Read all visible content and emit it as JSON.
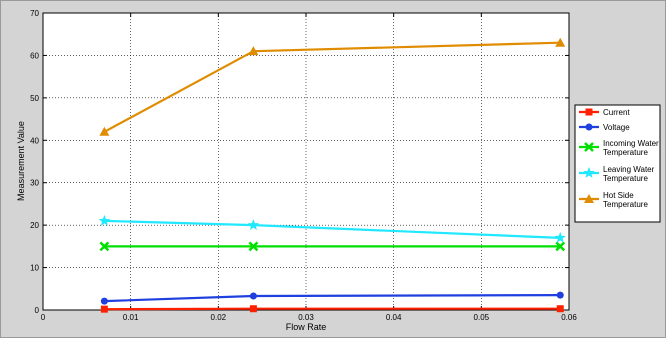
{
  "chart_data": {
    "type": "line",
    "title": "",
    "xlabel": "Flow Rate",
    "ylabel": "Measurement Value",
    "xlim": [
      0,
      0.06
    ],
    "ylim": [
      0,
      70
    ],
    "xticks": [
      0,
      0.01,
      0.02,
      0.03,
      0.04,
      0.05,
      0.06
    ],
    "xtick_labels": [
      "0",
      "0.01",
      "0.02",
      "0.03",
      "0.04",
      "0.05",
      "0.06"
    ],
    "yticks": [
      0,
      10,
      20,
      30,
      40,
      50,
      60,
      70
    ],
    "ytick_labels": [
      "0",
      "10",
      "20",
      "30",
      "40",
      "50",
      "60",
      "70"
    ],
    "grid": true,
    "legend_position": "right",
    "x": [
      0.007,
      0.024,
      0.059
    ],
    "series": [
      {
        "name": "Current",
        "values": [
          0.2,
          0.3,
          0.3
        ],
        "color": "#ff2000",
        "marker": "square"
      },
      {
        "name": "Voltage",
        "values": [
          2.1,
          3.3,
          3.5
        ],
        "color": "#1f3fdf",
        "marker": "circle"
      },
      {
        "name": "Incoming Water Temperature",
        "values": [
          15,
          15,
          15
        ],
        "color": "#00e000",
        "marker": "x"
      },
      {
        "name": "Leaving Water Temperature",
        "values": [
          21,
          20,
          17
        ],
        "color": "#1fe8ff",
        "marker": "star"
      },
      {
        "name": "Hot Side Temperature",
        "values": [
          42,
          61,
          63
        ],
        "color": "#e08c00",
        "marker": "triangle"
      }
    ]
  }
}
